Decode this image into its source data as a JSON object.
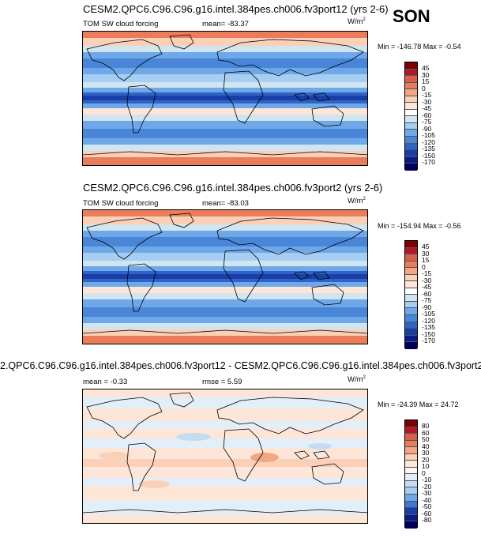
{
  "season": "SON",
  "panels": [
    {
      "title": "CESM2.QPC6.C96.C96.g16.intel.384pes.ch006.fv3port12 (yrs 2-6)",
      "variable": "TOM SW cloud forcing",
      "stat_text": "mean= -83.37",
      "units_base": "W/m",
      "units_exp": "2",
      "minmax": "Min = -146.78 Max =  -0.54",
      "colorbar_labels": [
        "45",
        "30",
        "15",
        "0",
        "-15",
        "-30",
        "-45",
        "-60",
        "-75",
        "-90",
        "-105",
        "-120",
        "-135",
        "-150",
        "-170"
      ]
    },
    {
      "title": "CESM2.QPC6.C96.C96.g16.intel.384pes.ch006.fv3port2 (yrs 2-6)",
      "variable": "TOM SW cloud forcing",
      "stat_text": "mean= -83.03",
      "units_base": "W/m",
      "units_exp": "2",
      "minmax": "Min = -154.94 Max =  -0.56",
      "colorbar_labels": [
        "45",
        "30",
        "15",
        "0",
        "-15",
        "-30",
        "-45",
        "-60",
        "-75",
        "-90",
        "-105",
        "-120",
        "-135",
        "-150",
        "-170"
      ]
    },
    {
      "title": "2.QPC6.C96.C96.g16.intel.384pes.ch006.fv3port12 - CESM2.QPC6.C96.C96.g16.intel.384pes.ch006.fv3port2",
      "mean_text": "mean =  -0.33",
      "rmse_text": "rmse =   5.59",
      "units_base": "W/m",
      "units_exp": "2",
      "minmax": "Min = -24.39 Max =  24.72",
      "colorbar_labels": [
        "80",
        "60",
        "50",
        "40",
        "30",
        "20",
        "10",
        "0",
        "-10",
        "-20",
        "-30",
        "-40",
        "-50",
        "-60",
        "-80"
      ]
    }
  ],
  "colors": {
    "abs_scale": [
      "#7f0000",
      "#b2182b",
      "#d6604d",
      "#ea7c5a",
      "#f4a582",
      "#fbd0b9",
      "#fde5d8",
      "#ffffff",
      "#d1e5f0",
      "#a6cdf2",
      "#6fa8e8",
      "#4a86d8",
      "#2f64c4",
      "#1a3ea8",
      "#0a1a8c",
      "#00005a"
    ],
    "diff_scale": [
      "#7f0000",
      "#b2182b",
      "#d6604d",
      "#ea7c5a",
      "#f4a582",
      "#fbd0b9",
      "#fde5d8",
      "#fff4ee",
      "#e2eef8",
      "#c5dcf0",
      "#a6cdf2",
      "#6fa8e8",
      "#3f78d0",
      "#1a3ea8",
      "#0a1a8c",
      "#00005a"
    ]
  }
}
